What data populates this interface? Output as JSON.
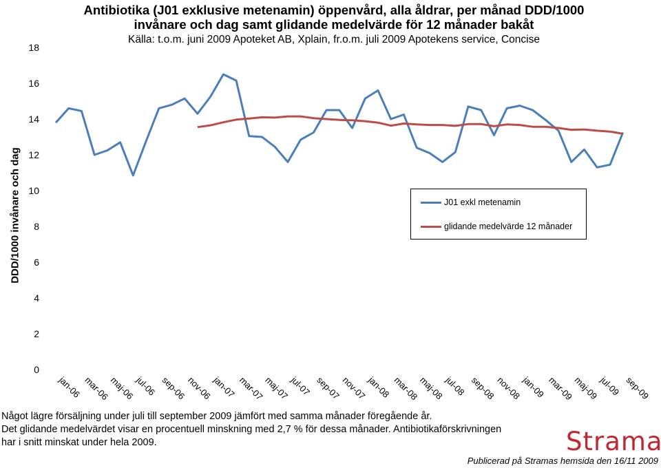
{
  "chart_data": {
    "type": "line",
    "title": "Antibiotika (J01 exklusive metenamin) öppenvård, alla åldrar, per månad DDD/1000 invånare och dag samt glidande medelvärde för 12 månader bakåt",
    "title_lines": [
      "Antibiotika (J01 exklusive metenamin) öppenvård, alla åldrar, per månad DDD/1000",
      "invånare och dag samt glidande medelvärde för 12 månader bakåt"
    ],
    "subtitle": "Källa: t.o.m. juni 2009 Apoteket AB, Xplain, fr.o.m. juli 2009 Apotekens service, Concise",
    "xlabel": "",
    "ylabel": "DDD/1000 invånare och dag",
    "ylim": [
      0,
      18
    ],
    "yticks": [
      0,
      2,
      4,
      6,
      8,
      10,
      12,
      14,
      16,
      18
    ],
    "grid": false,
    "legend_position": "right-middle",
    "x": [
      "jan-06",
      "feb-06",
      "mar-06",
      "apr-06",
      "maj-06",
      "jun-06",
      "jul-06",
      "aug-06",
      "sep-06",
      "okt-06",
      "nov-06",
      "dec-06",
      "jan-07",
      "feb-07",
      "mar-07",
      "apr-07",
      "maj-07",
      "jun-07",
      "jul-07",
      "aug-07",
      "sep-07",
      "okt-07",
      "nov-07",
      "dec-07",
      "jan-08",
      "feb-08",
      "mar-08",
      "apr-08",
      "maj-08",
      "jun-08",
      "jul-08",
      "aug-08",
      "sep-08",
      "okt-08",
      "nov-08",
      "dec-08",
      "jan-09",
      "feb-09",
      "mar-09",
      "apr-09",
      "maj-09",
      "jun-09",
      "jul-09",
      "aug-09",
      "sep-09"
    ],
    "tick_labels": [
      "jan-06",
      "mar-06",
      "maj-06",
      "jul-06",
      "sep-06",
      "nov-06",
      "jan-07",
      "mar-07",
      "maj-07",
      "jul-07",
      "sep-07",
      "nov-07",
      "jan-08",
      "mar-08",
      "maj-08",
      "jul-08",
      "sep-08",
      "nov-08",
      "jan-09",
      "mar-09",
      "maj-09",
      "jul-09",
      "sep-09"
    ],
    "series": [
      {
        "name": "J01 exkl metenamin",
        "color": "#4a7ebb",
        "values": [
          13.8,
          14.6,
          14.45,
          12.0,
          12.25,
          12.7,
          10.85,
          12.75,
          14.6,
          14.8,
          15.15,
          14.3,
          15.25,
          16.5,
          16.15,
          13.05,
          13.0,
          12.45,
          11.6,
          12.85,
          13.25,
          14.5,
          14.5,
          13.5,
          15.15,
          15.6,
          14.0,
          14.25,
          12.4,
          12.1,
          11.6,
          12.15,
          14.7,
          14.5,
          13.1,
          14.6,
          14.75,
          14.5,
          13.95,
          13.35,
          11.6,
          12.3,
          11.3,
          11.45,
          13.25
        ]
      },
      {
        "name": "glidande medelvärde 12 månader",
        "color": "#be4b48",
        "values": [
          null,
          null,
          null,
          null,
          null,
          null,
          null,
          null,
          null,
          null,
          null,
          13.55,
          13.65,
          13.82,
          13.97,
          14.03,
          14.1,
          14.08,
          14.15,
          14.15,
          14.05,
          14.0,
          13.95,
          13.93,
          13.88,
          13.8,
          13.63,
          13.75,
          13.7,
          13.67,
          13.67,
          13.62,
          13.72,
          13.72,
          13.6,
          13.7,
          13.67,
          13.57,
          13.57,
          13.5,
          13.4,
          13.42,
          13.35,
          13.3,
          13.18
        ]
      }
    ]
  },
  "notes": [
    "Något lägre försäljning under juli till september 2009 jämfört med samma månader föregående år.",
    "Det glidande medelvärdet visar en procentuell minskning med 2,7 % för dessa månader. Antibiotikaförskrivningen",
    "har i snitt minskat under hela 2009."
  ],
  "logo_text": "Strama",
  "logo_color": "#c0282f",
  "published": "Publicerad på Stramas hemsida den 16/11 2009"
}
